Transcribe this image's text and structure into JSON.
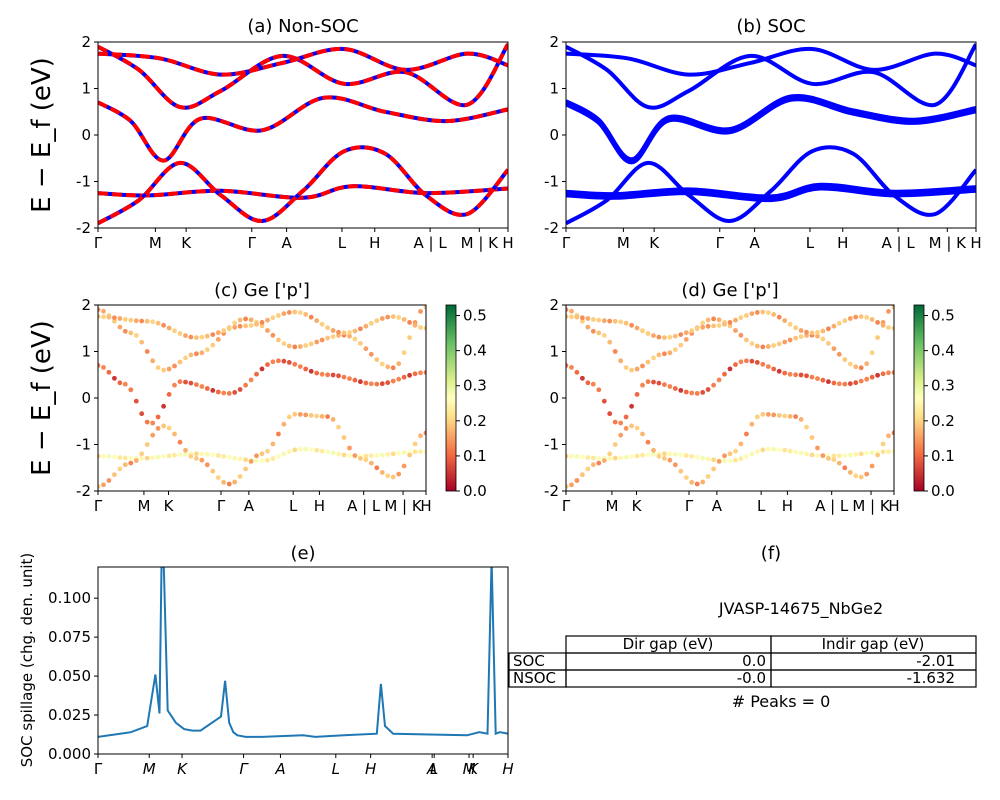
{
  "chart_data": [
    {
      "type": "line",
      "title": "(a) Non-SOC",
      "ylabel": "E − E_f (eV)",
      "ylim": [
        -2,
        2
      ],
      "yticks": [
        -2,
        -1,
        0,
        1,
        2
      ],
      "kpath_labels": [
        "Γ",
        "M",
        "K",
        "Γ",
        "A",
        "L",
        "H",
        "A | L",
        "M | K",
        "H"
      ],
      "series": [
        {
          "x": [
            0.0,
            0.12,
            0.3,
            0.5,
            0.62,
            0.8,
            1.0
          ],
          "values": [
            -1.25,
            -1.3,
            -1.2,
            -1.35,
            -1.1,
            -1.25,
            -1.15
          ]
        },
        {
          "x": [
            0.0,
            0.08,
            0.16,
            0.25,
            0.4,
            0.55,
            0.7,
            0.85,
            1.0
          ],
          "values": [
            0.7,
            0.3,
            -0.55,
            0.35,
            0.1,
            0.8,
            0.5,
            0.3,
            0.55
          ]
        },
        {
          "x": [
            0.0,
            0.1,
            0.2,
            0.3,
            0.4,
            0.5,
            0.6,
            0.7,
            0.8,
            0.9,
            1.0
          ],
          "values": [
            -1.9,
            -1.4,
            -0.6,
            -1.3,
            -1.85,
            -1.2,
            -0.35,
            -0.4,
            -1.3,
            -1.7,
            -0.75
          ]
        },
        {
          "x": [
            0.0,
            0.1,
            0.2,
            0.3,
            0.45,
            0.6,
            0.75,
            0.9,
            1.0
          ],
          "values": [
            1.9,
            1.4,
            0.6,
            0.95,
            1.7,
            1.1,
            1.35,
            0.65,
            1.95
          ]
        },
        {
          "x": [
            0.0,
            0.15,
            0.3,
            0.45,
            0.6,
            0.75,
            0.9,
            1.0
          ],
          "values": [
            1.75,
            1.65,
            1.3,
            1.55,
            1.85,
            1.4,
            1.75,
            1.5
          ]
        }
      ]
    },
    {
      "type": "line",
      "title": "(b) SOC",
      "ylim": [
        -2,
        2
      ],
      "yticks": [
        -2,
        -1,
        0,
        1,
        2
      ],
      "kpath_labels": [
        "Γ",
        "M",
        "K",
        "Γ",
        "A",
        "L",
        "H",
        "A | L",
        "M | K",
        "H"
      ],
      "series": [
        {
          "x": [
            0.0,
            0.12,
            0.3,
            0.5,
            0.62,
            0.8,
            1.0
          ],
          "values": [
            -1.22,
            -1.27,
            -1.17,
            -1.32,
            -1.07,
            -1.22,
            -1.12
          ]
        },
        {
          "x": [
            0.0,
            0.12,
            0.3,
            0.5,
            0.62,
            0.8,
            1.0
          ],
          "values": [
            -1.3,
            -1.35,
            -1.25,
            -1.4,
            -1.15,
            -1.3,
            -1.2
          ]
        },
        {
          "x": [
            0.0,
            0.08,
            0.16,
            0.25,
            0.4,
            0.55,
            0.7,
            0.85,
            1.0
          ],
          "values": [
            0.73,
            0.33,
            -0.52,
            0.38,
            0.13,
            0.83,
            0.53,
            0.33,
            0.58
          ]
        },
        {
          "x": [
            0.0,
            0.08,
            0.16,
            0.25,
            0.4,
            0.55,
            0.7,
            0.85,
            1.0
          ],
          "values": [
            0.66,
            0.26,
            -0.59,
            0.31,
            0.06,
            0.76,
            0.46,
            0.26,
            0.51
          ]
        },
        {
          "x": [
            0.0,
            0.1,
            0.2,
            0.3,
            0.4,
            0.5,
            0.6,
            0.7,
            0.8,
            0.9,
            1.0
          ],
          "values": [
            -1.9,
            -1.4,
            -0.6,
            -1.3,
            -1.85,
            -1.2,
            -0.35,
            -0.4,
            -1.3,
            -1.7,
            -0.75
          ]
        },
        {
          "x": [
            0.0,
            0.1,
            0.2,
            0.3,
            0.45,
            0.6,
            0.75,
            0.9,
            1.0
          ],
          "values": [
            1.9,
            1.4,
            0.6,
            0.95,
            1.7,
            1.1,
            1.35,
            0.65,
            1.95
          ]
        },
        {
          "x": [
            0.0,
            0.15,
            0.3,
            0.45,
            0.6,
            0.75,
            0.9,
            1.0
          ],
          "values": [
            1.75,
            1.65,
            1.3,
            1.55,
            1.85,
            1.4,
            1.75,
            1.5
          ]
        }
      ]
    },
    {
      "type": "scatter",
      "title": "(c)  Ge ['p']",
      "ylabel": "E − E_f (eV)",
      "ylim": [
        -2,
        2
      ],
      "yticks": [
        -2,
        -1,
        0,
        1,
        2
      ],
      "kpath_labels": [
        "Γ",
        "M",
        "K",
        "Γ",
        "A",
        "L",
        "H",
        "A | L",
        "M | K",
        "H"
      ],
      "colorbar": {
        "range": [
          0.0,
          0.53
        ],
        "ticks": [
          "0.0",
          "0.1",
          "0.2",
          "0.3",
          "0.4",
          "0.5"
        ]
      }
    },
    {
      "type": "scatter",
      "title": "(d) Ge ['p']",
      "ylim": [
        -2,
        2
      ],
      "yticks": [
        -2,
        -1,
        0,
        1,
        2
      ],
      "kpath_labels": [
        "Γ",
        "M",
        "K",
        "Γ",
        "A",
        "L",
        "H",
        "A | L",
        "M | K",
        "H"
      ],
      "colorbar": {
        "range": [
          0.0,
          0.53
        ],
        "ticks": [
          "0.0",
          "0.1",
          "0.2",
          "0.3",
          "0.4",
          "0.5"
        ]
      }
    },
    {
      "type": "line",
      "title": "(e)",
      "ylabel": "SOC spillage (chg. den. unit)",
      "ylim": [
        0,
        0.12
      ],
      "yticks": [
        "0.000",
        "0.025",
        "0.050",
        "0.075",
        "0.100"
      ],
      "kpath_labels": [
        "Γ",
        "M",
        "K",
        "Γ",
        "A",
        "L",
        "H",
        "A",
        "L",
        "M",
        "K",
        "H"
      ],
      "series": [
        {
          "x": [
            0.0,
            0.08,
            0.12,
            0.14,
            0.15,
            0.155,
            0.16,
            0.17,
            0.19,
            0.21,
            0.23,
            0.25,
            0.3,
            0.31,
            0.32,
            0.33,
            0.34,
            0.36,
            0.4,
            0.5,
            0.53,
            0.6,
            0.68,
            0.69,
            0.7,
            0.72,
            0.9,
            0.93,
            0.95,
            0.96,
            0.97,
            0.98,
            1.0
          ],
          "values": [
            0.011,
            0.014,
            0.018,
            0.051,
            0.026,
            0.125,
            0.125,
            0.028,
            0.02,
            0.016,
            0.015,
            0.015,
            0.024,
            0.047,
            0.02,
            0.014,
            0.012,
            0.011,
            0.011,
            0.012,
            0.011,
            0.012,
            0.013,
            0.045,
            0.018,
            0.013,
            0.012,
            0.014,
            0.013,
            0.125,
            0.013,
            0.014,
            0.013
          ]
        }
      ]
    },
    {
      "type": "table",
      "title": "(f)",
      "caption": "JVASP-14675_NbGe2",
      "columns": [
        "Dir gap (eV)",
        "Indir gap (eV)"
      ],
      "rows": [
        {
          "label": "SOC",
          "values": [
            "0.0",
            "-2.01"
          ]
        },
        {
          "label": "NSOC",
          "values": [
            "-0.0",
            "-1.632"
          ]
        }
      ],
      "footer": "# Peaks = 0"
    }
  ],
  "colors": {
    "red": "#ff0000",
    "blue": "#0000ff",
    "spill": "#1f77b4"
  }
}
